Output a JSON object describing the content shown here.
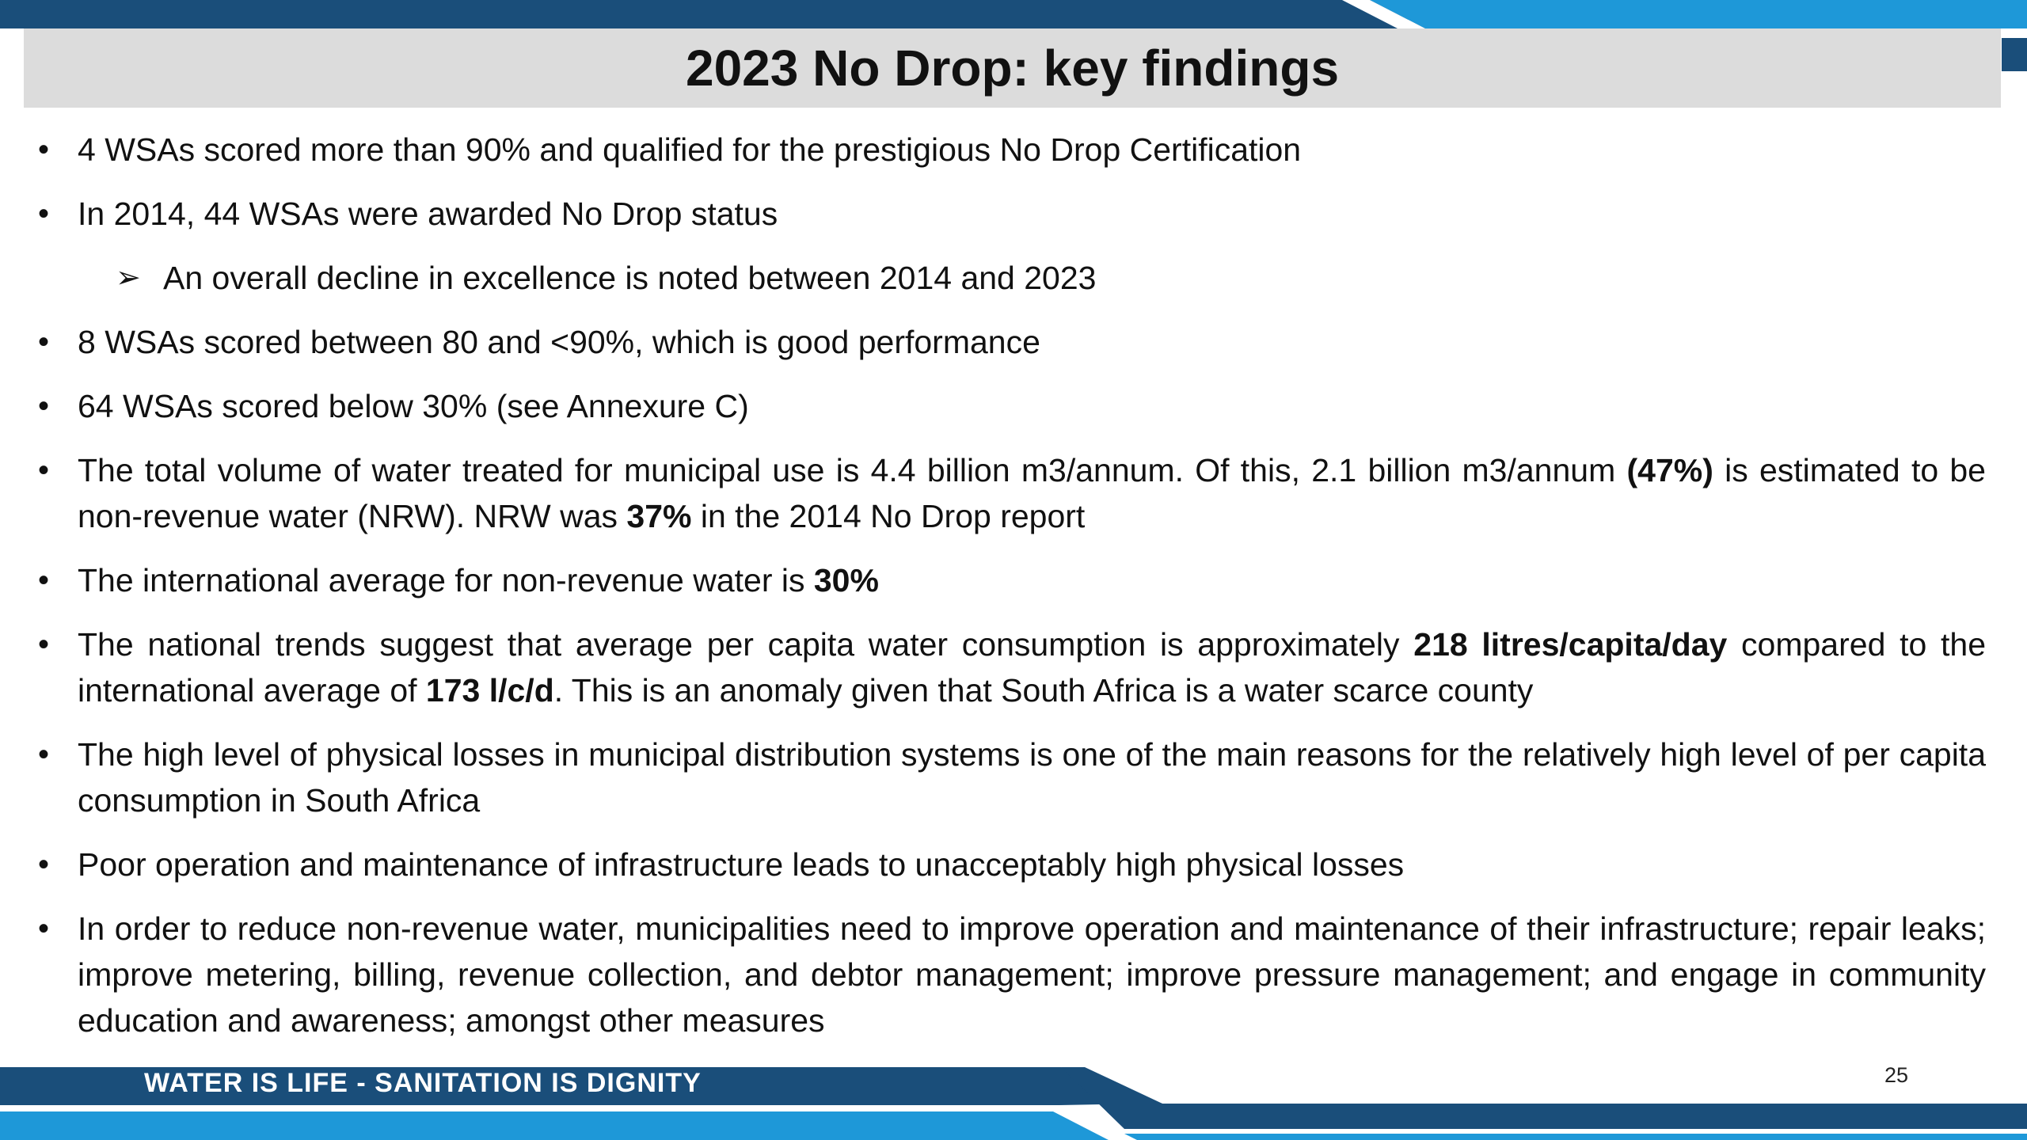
{
  "title": "2023 No Drop: key findings",
  "colors": {
    "dark_blue": "#1a4e7a",
    "light_blue": "#1e98d8",
    "title_bar_gray": "#dcdcdc"
  },
  "icons": {
    "bullet": "•",
    "sub_bullet": "➢"
  },
  "bullets": [
    {
      "text": "4 WSAs scored more than 90% and qualified for the prestigious No Drop Certification"
    },
    {
      "text": "In 2014, 44 WSAs were awarded No Drop status"
    },
    {
      "text": "An overall decline in excellence is noted between 2014 and 2023"
    },
    {
      "text": "8 WSAs scored between 80 and <90%, which is good performance"
    },
    {
      "text": "64 WSAs scored below 30% (see Annexure C)"
    },
    {
      "t1": "The total volume of water treated for municipal use is 4.4 billion m3/annum. Of this, 2.1 billion m3/annum ",
      "b1": "(47%)",
      "t2": " is estimated to be non-revenue water (NRW). NRW was ",
      "b2": "37%",
      "t3": " in the 2014 No Drop report"
    },
    {
      "t1": "The international average for non-revenue water is ",
      "b1": "30%"
    },
    {
      "t1": "The national trends suggest that average per capita water consumption is approximately ",
      "b1": "218 litres/capita/day",
      "t2": " compared to the international average of ",
      "b2": "173 l/c/d",
      "t3": ". This is an anomaly given that South Africa is a water scarce county"
    },
    {
      "text": "The high level of physical losses in municipal distribution systems is one of the main reasons for the relatively high level of per capita consumption in South Africa"
    },
    {
      "text": "Poor operation and maintenance of infrastructure leads to unacceptably high physical losses"
    },
    {
      "text": "In order to reduce non-revenue water, municipalities need to improve operation and maintenance of their infrastructure; repair leaks; improve metering, billing, revenue collection, and debtor management; improve pressure management; and engage in community education and awareness; amongst other measures"
    }
  ],
  "footer": {
    "slogan": "WATER IS LIFE - SANITATION IS DIGNITY",
    "page_number": "25"
  }
}
